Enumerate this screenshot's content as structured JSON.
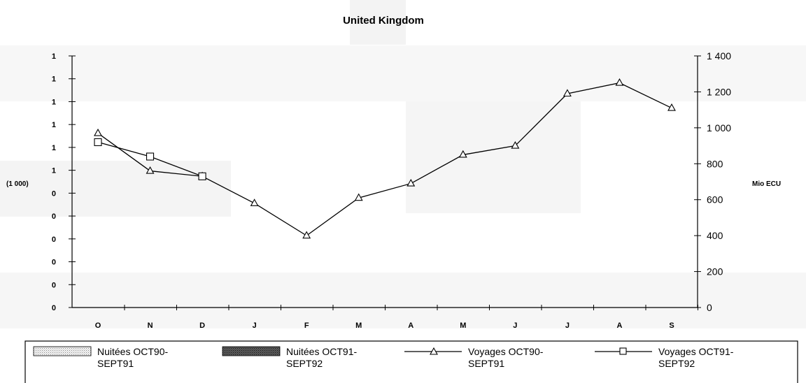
{
  "chart_data": {
    "type": "line",
    "title": "United Kingdom",
    "categories": [
      "O",
      "N",
      "D",
      "J",
      "F",
      "M",
      "A",
      "M",
      "J",
      "J",
      "A",
      "S"
    ],
    "left_axis": {
      "label": "(1 000)",
      "tick_labels": [
        "0",
        "0",
        "0",
        "0",
        "0",
        "0",
        "1",
        "1",
        "1",
        "1",
        "1",
        "1"
      ]
    },
    "right_axis": {
      "label": "Mio ECU",
      "ylim": [
        0,
        1400
      ],
      "tick_labels": [
        "0",
        "200",
        "400",
        "600",
        "800",
        "1 000",
        "1 200",
        "1 400"
      ]
    },
    "series": [
      {
        "name": "Voyages OCT90-SEPT91",
        "marker": "triangle",
        "axis": "right",
        "values": [
          970,
          760,
          730,
          580,
          400,
          610,
          690,
          850,
          900,
          1190,
          1250,
          1110
        ]
      },
      {
        "name": "Voyages OCT91-SEPT92",
        "marker": "square",
        "axis": "right",
        "values": [
          920,
          840,
          730,
          null,
          null,
          null,
          null,
          null,
          null,
          null,
          null,
          null
        ]
      }
    ],
    "legend": {
      "placement": "bottom",
      "entries": [
        {
          "line1": "Nuitées OCT90-",
          "line2": "SEPT91",
          "swatch": "light-pattern"
        },
        {
          "line1": "Nuitées OCT91-",
          "line2": "SEPT92",
          "swatch": "dark-pattern"
        },
        {
          "line1": "Voyages OCT90-",
          "line2": "SEPT91",
          "swatch": "triangle-line"
        },
        {
          "line1": "Voyages OCT91-",
          "line2": "SEPT92",
          "swatch": "square-line"
        }
      ]
    },
    "grid": false
  }
}
